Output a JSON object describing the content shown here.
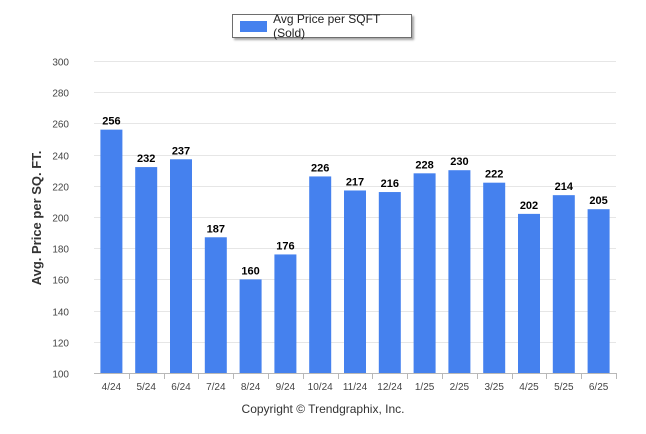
{
  "colors": {
    "bar": "#4581ee",
    "grid": "#e6e6e6",
    "axis": "#b8b8b8",
    "tick_text": "#444444",
    "label_text": "#000000"
  },
  "legend": {
    "label": "Avg Price per SQFT (Sold)"
  },
  "footer": {
    "copyright": "Copyright © Trendgraphix, Inc."
  },
  "chart_data": {
    "type": "bar",
    "title": "",
    "xlabel": "",
    "ylabel": "Avg. Price per SQ. FT.",
    "ylim": [
      100,
      300
    ],
    "yticks": [
      100,
      120,
      140,
      160,
      180,
      200,
      220,
      240,
      260,
      280,
      300
    ],
    "grid": true,
    "legend_position": "top-center",
    "categories": [
      "4/24",
      "5/24",
      "6/24",
      "7/24",
      "8/24",
      "9/24",
      "10/24",
      "11/24",
      "12/24",
      "1/25",
      "2/25",
      "3/25",
      "4/25",
      "5/25",
      "6/25"
    ],
    "series": [
      {
        "name": "Avg Price per SQFT (Sold)",
        "values": [
          256,
          232,
          237,
          187,
          160,
          176,
          226,
          217,
          216,
          228,
          230,
          222,
          202,
          214,
          205
        ]
      }
    ]
  }
}
